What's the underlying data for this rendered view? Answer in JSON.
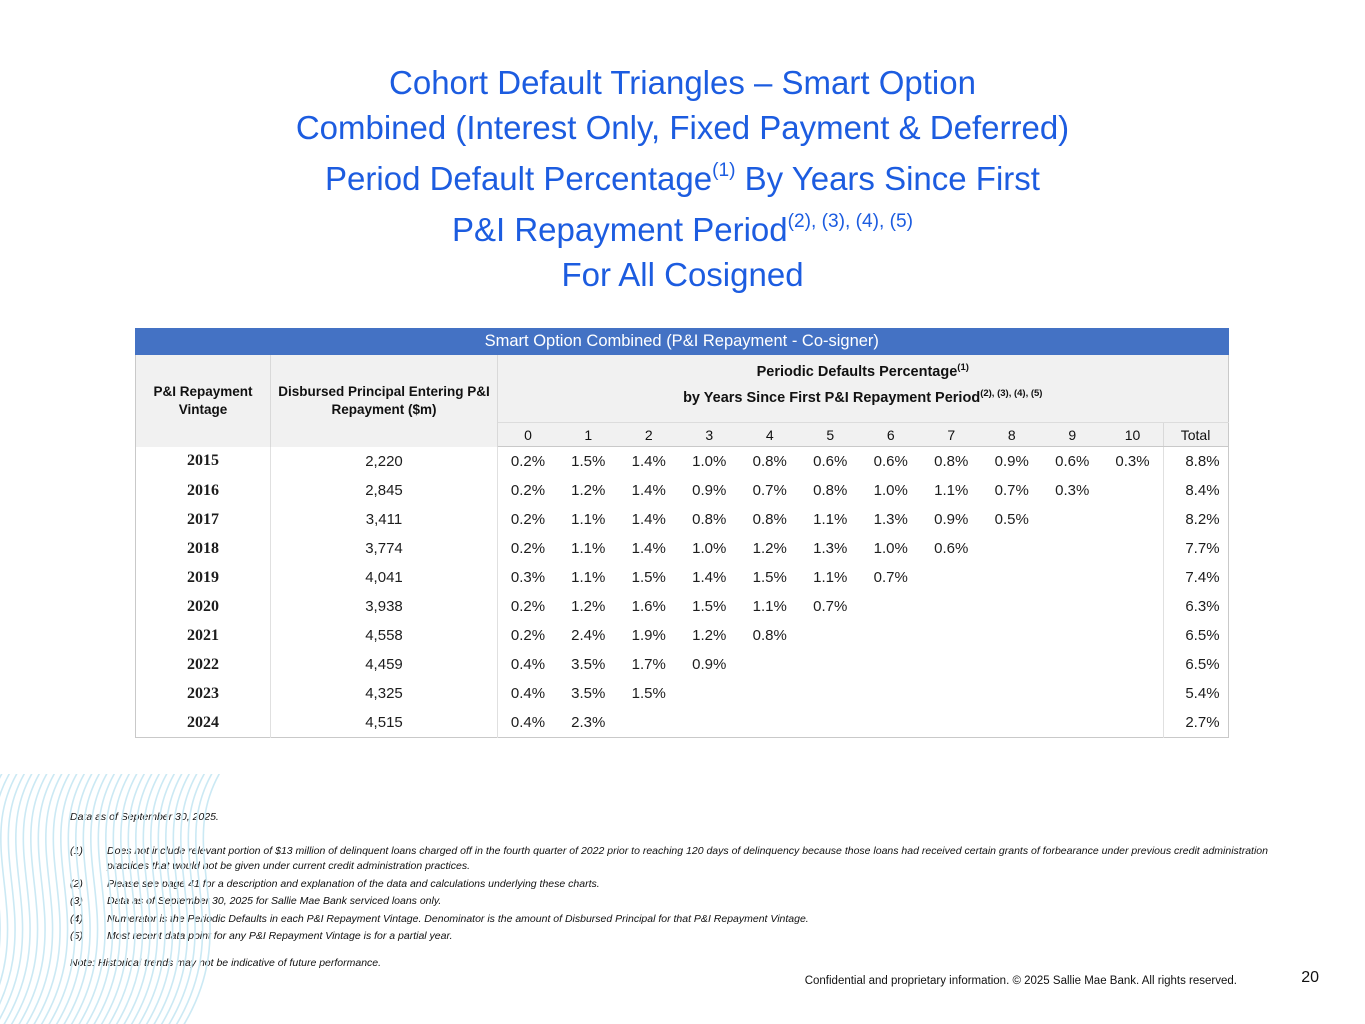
{
  "title": {
    "line1": "Cohort Default Triangles – Smart Option",
    "line2": "Combined (Interest Only, Fixed Payment & Deferred)",
    "line3_pre": "Period Default Percentage",
    "line3_sup": "(1)",
    "line3_post": " By Years Since First",
    "line4_pre": "P&I Repayment Period",
    "line4_sup": "(2), (3), (4), (5)",
    "line5": "For All Cosigned"
  },
  "table": {
    "title": "Smart Option Combined (P&I Repayment - Co-signer)",
    "col1_header": "P&I Repayment Vintage",
    "col2_header": "Disbursed Principal Entering P&I Repayment ($m)",
    "group_header_line1": "Periodic Defaults Percentage",
    "group_header_line1_sup": "(1)",
    "group_header_line2": "by Years Since First P&I Repayment Period",
    "group_header_line2_sup": "(2), (3), (4), (5)",
    "year_headers": [
      "0",
      "1",
      "2",
      "3",
      "4",
      "5",
      "6",
      "7",
      "8",
      "9",
      "10"
    ],
    "total_header": "Total",
    "rows": [
      {
        "vintage": "2015",
        "disbursed": "2,220",
        "values": [
          "0.2%",
          "1.5%",
          "1.4%",
          "1.0%",
          "0.8%",
          "0.6%",
          "0.6%",
          "0.8%",
          "0.9%",
          "0.6%",
          "0.3%"
        ],
        "total": "8.8%"
      },
      {
        "vintage": "2016",
        "disbursed": "2,845",
        "values": [
          "0.2%",
          "1.2%",
          "1.4%",
          "0.9%",
          "0.7%",
          "0.8%",
          "1.0%",
          "1.1%",
          "0.7%",
          "0.3%",
          ""
        ],
        "total": "8.4%"
      },
      {
        "vintage": "2017",
        "disbursed": "3,411",
        "values": [
          "0.2%",
          "1.1%",
          "1.4%",
          "0.8%",
          "0.8%",
          "1.1%",
          "1.3%",
          "0.9%",
          "0.5%",
          "",
          ""
        ],
        "total": "8.2%"
      },
      {
        "vintage": "2018",
        "disbursed": "3,774",
        "values": [
          "0.2%",
          "1.1%",
          "1.4%",
          "1.0%",
          "1.2%",
          "1.3%",
          "1.0%",
          "0.6%",
          "",
          "",
          ""
        ],
        "total": "7.7%"
      },
      {
        "vintage": "2019",
        "disbursed": "4,041",
        "values": [
          "0.3%",
          "1.1%",
          "1.5%",
          "1.4%",
          "1.5%",
          "1.1%",
          "0.7%",
          "",
          "",
          "",
          ""
        ],
        "total": "7.4%"
      },
      {
        "vintage": "2020",
        "disbursed": "3,938",
        "values": [
          "0.2%",
          "1.2%",
          "1.6%",
          "1.5%",
          "1.1%",
          "0.7%",
          "",
          "",
          "",
          "",
          ""
        ],
        "total": "6.3%"
      },
      {
        "vintage": "2021",
        "disbursed": "4,558",
        "values": [
          "0.2%",
          "2.4%",
          "1.9%",
          "1.2%",
          "0.8%",
          "",
          "",
          "",
          "",
          "",
          ""
        ],
        "total": "6.5%"
      },
      {
        "vintage": "2022",
        "disbursed": "4,459",
        "values": [
          "0.4%",
          "3.5%",
          "1.7%",
          "0.9%",
          "",
          "",
          "",
          "",
          "",
          "",
          ""
        ],
        "total": "6.5%"
      },
      {
        "vintage": "2023",
        "disbursed": "4,325",
        "values": [
          "0.4%",
          "3.5%",
          "1.5%",
          "",
          "",
          "",
          "",
          "",
          "",
          "",
          ""
        ],
        "total": "5.4%"
      },
      {
        "vintage": "2024",
        "disbursed": "4,515",
        "values": [
          "0.4%",
          "2.3%",
          "",
          "",
          "",
          "",
          "",
          "",
          "",
          "",
          ""
        ],
        "total": "2.7%"
      }
    ]
  },
  "footnotes": {
    "data_as_of": "Data as of September 30, 2025.",
    "items": [
      {
        "num": "(1)",
        "text": "Does not include relevant portion of $13 million of delinquent loans charged off in the fourth quarter of 2022 prior to reaching 120 days of delinquency because those loans had received certain grants of forbearance under previous credit administration practices that would not be given under current credit administration practices."
      },
      {
        "num": "(2)",
        "text": "Please see page 41 for a description and explanation of the data and calculations underlying these charts."
      },
      {
        "num": "(3)",
        "text": "Data as of September 30, 2025 for Sallie Mae Bank serviced loans only."
      },
      {
        "num": "(4)",
        "text": "Numerator is the Periodic Defaults in each P&I Repayment Vintage. Denominator is the amount of Disbursed Principal for that P&I Repayment Vintage."
      },
      {
        "num": "(5)",
        "text": "Most recent data point for any P&I Repayment Vintage is for a partial year."
      }
    ],
    "note": "Note: Historical trends may not be indicative of future performance."
  },
  "footer": {
    "confidential": "Confidential and proprietary information. © 2025 Sallie Mae Bank. All rights reserved.",
    "page_number": "20"
  },
  "colors": {
    "title_blue": "#1c5ce0",
    "header_bar_blue": "#4472c4",
    "wave_blue": "#cbe9f4"
  }
}
